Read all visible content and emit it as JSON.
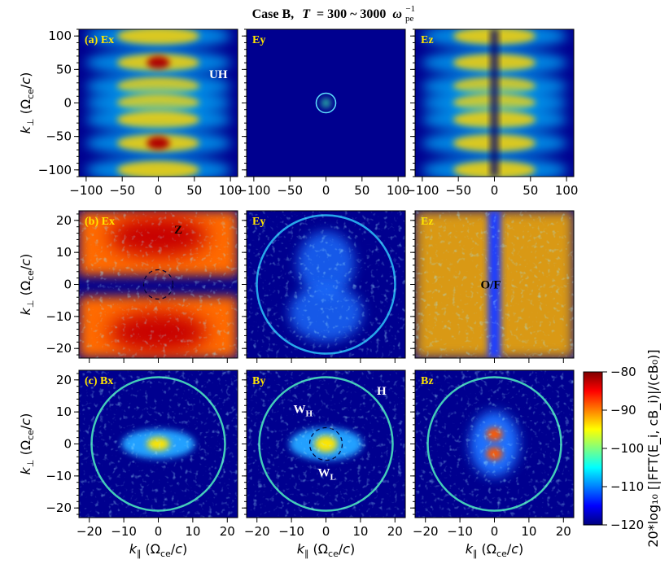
{
  "title": {
    "prefix": "Case B,",
    "T": "T",
    "range": "= 300 ~ 3000",
    "omega": "ω",
    "sub": "pe",
    "sup": "−1"
  },
  "colorbar": {
    "label": "20*log₁₀ [|FFT(E_i, cB_i)|/(cB₀)]",
    "range": [
      -120,
      -80
    ],
    "ticks": [
      -80,
      -90,
      -100,
      -110,
      -120
    ],
    "colormap": "jet"
  },
  "chart_data": [
    {
      "type": "heatmap",
      "row": "a",
      "panels": [
        {
          "component": "Ex",
          "label": "(a) Ex",
          "annotations": [
            "UH"
          ]
        },
        {
          "component": "Ey",
          "label": "Ey",
          "annotations": []
        },
        {
          "component": "Ez",
          "label": "Ez",
          "annotations": []
        }
      ],
      "xlim": [
        -110,
        110
      ],
      "ylim": [
        -110,
        110
      ],
      "xticks": [
        -100,
        -50,
        0,
        50,
        100
      ],
      "yticks": [
        100,
        50,
        0,
        -50,
        -100
      ],
      "ylabel": "k⊥ (Ωce/c)"
    },
    {
      "type": "heatmap",
      "row": "b",
      "panels": [
        {
          "component": "Ex",
          "label": "(b) Ex",
          "annotations": [
            "Z"
          ]
        },
        {
          "component": "Ey",
          "label": "Ey",
          "annotations": []
        },
        {
          "component": "Ez",
          "label": "Ez",
          "annotations": [
            "O/F"
          ]
        }
      ],
      "xlim": [
        -23,
        23
      ],
      "ylim": [
        -23,
        23
      ],
      "yticks": [
        20,
        10,
        0,
        -10,
        -20
      ],
      "ylabel": "k⊥ (Ωce/c)"
    },
    {
      "type": "heatmap",
      "row": "c",
      "panels": [
        {
          "component": "Bx",
          "label": "(c) Bx",
          "annotations": []
        },
        {
          "component": "By",
          "label": "By",
          "annotations": [
            "H",
            "W_H",
            "W_L"
          ]
        },
        {
          "component": "Bz",
          "label": "Bz",
          "annotations": []
        }
      ],
      "xlim": [
        -23,
        23
      ],
      "ylim": [
        -23,
        23
      ],
      "xticks": [
        -20,
        -10,
        0,
        10,
        20
      ],
      "yticks": [
        20,
        10,
        0,
        -10,
        -20
      ],
      "xlabel": "k∥ (Ωce/c)",
      "ylabel": "k⊥ (Ωce/c)"
    }
  ]
}
